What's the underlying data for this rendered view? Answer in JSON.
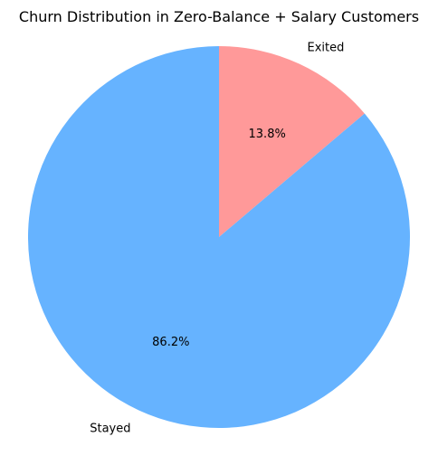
{
  "chart_data": {
    "type": "pie",
    "title": "Churn Distribution in Zero-Balance + Salary Customers",
    "slices": [
      {
        "label": "Exited",
        "value": 13.8,
        "pct_label": "13.8%",
        "color": "#ff9999"
      },
      {
        "label": "Stayed",
        "value": 86.2,
        "pct_label": "86.2%",
        "color": "#66b3ff"
      }
    ],
    "start_angle": 90,
    "direction": "clockwise"
  }
}
